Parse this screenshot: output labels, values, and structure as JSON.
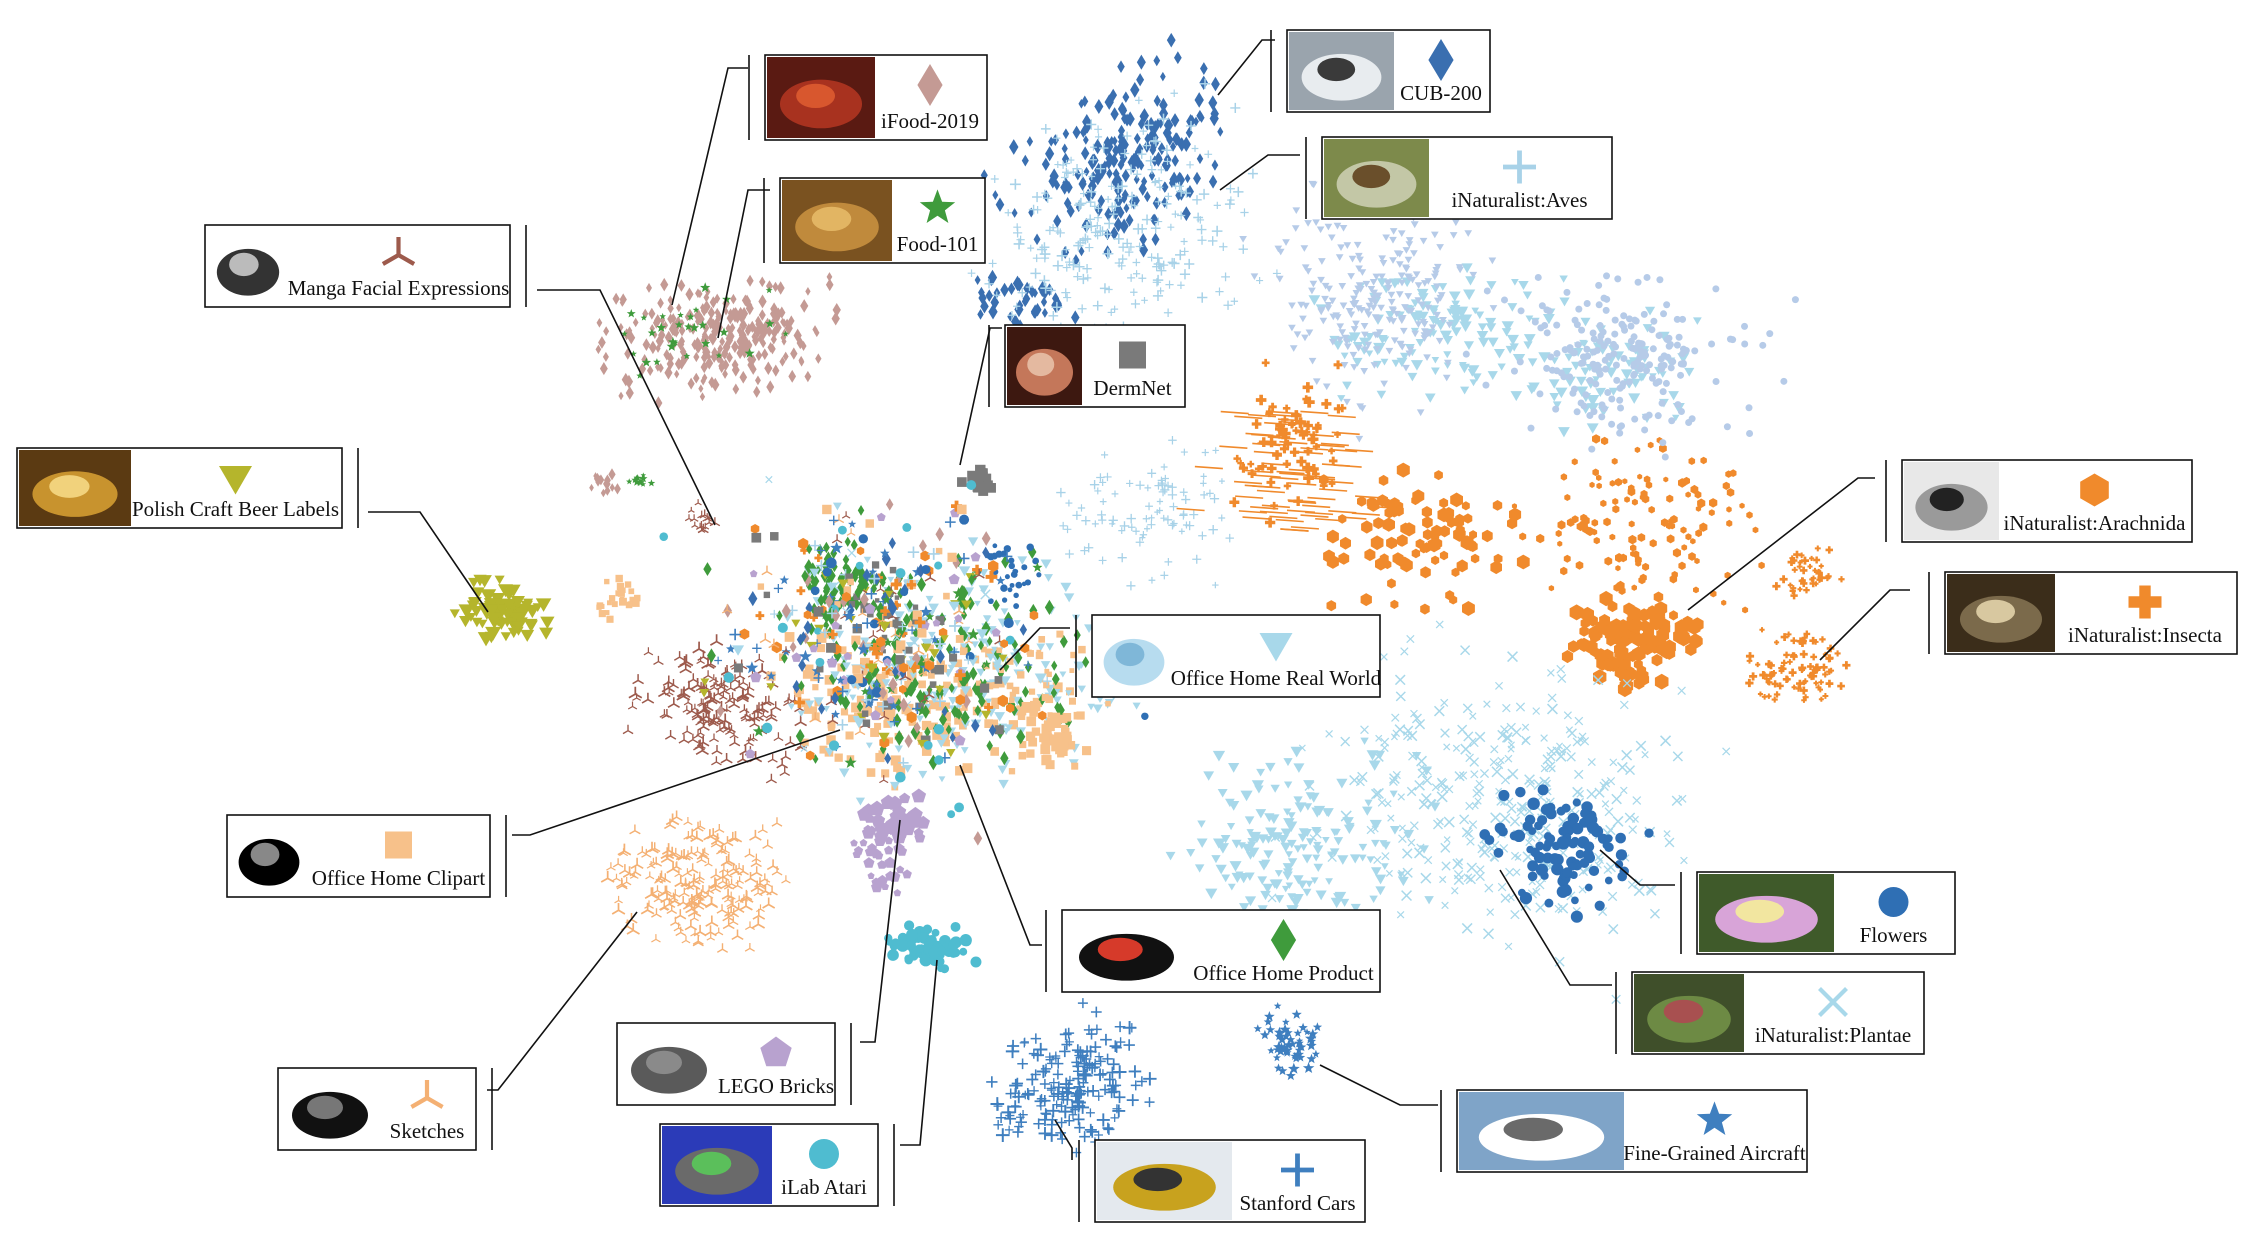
{
  "chart_data": {
    "type": "scatter",
    "title": "",
    "xlabel": "",
    "ylabel": "",
    "grid": false,
    "legend_placement": "callouts around plot",
    "series": [
      {
        "name": "iFood-2019",
        "marker": "diamond",
        "color": "#c49a94"
      },
      {
        "name": "Food-101",
        "marker": "star",
        "color": "#3f9b3c"
      },
      {
        "name": "Manga Facial Expressions",
        "marker": "tri",
        "color": "#9d5a4c"
      },
      {
        "name": "Polish Craft Beer Labels",
        "marker": "triangle-down",
        "color": "#b5b52c"
      },
      {
        "name": "CUB-200",
        "marker": "diamond",
        "color": "#3a6fb0"
      },
      {
        "name": "iNaturalist:Aves",
        "marker": "plus",
        "color": "#a8d2e8"
      },
      {
        "name": "DermNet",
        "marker": "square",
        "color": "#7a7a7a"
      },
      {
        "name": "iNaturalist:Arachnida",
        "marker": "hexagon",
        "color": "#f08a2c"
      },
      {
        "name": "iNaturalist:Insecta",
        "marker": "plus-filled",
        "color": "#f08a2c"
      },
      {
        "name": "Office Home Real World",
        "marker": "triangle-down",
        "color": "#a8d8ea"
      },
      {
        "name": "Office Home Clipart",
        "marker": "square",
        "color": "#f7c18a"
      },
      {
        "name": "Office Home Product",
        "marker": "diamond",
        "color": "#3f9b3c"
      },
      {
        "name": "Flowers",
        "marker": "circle",
        "color": "#2f6fb4"
      },
      {
        "name": "iNaturalist:Plantae",
        "marker": "x",
        "color": "#a8d8ea"
      },
      {
        "name": "Sketches",
        "marker": "tri",
        "color": "#f4b073"
      },
      {
        "name": "LEGO Bricks",
        "marker": "pentagon",
        "color": "#b8a2cf"
      },
      {
        "name": "iLab Atari",
        "marker": "circle",
        "color": "#4fbcd0"
      },
      {
        "name": "Stanford Cars",
        "marker": "plus",
        "color": "#3f7fbf"
      },
      {
        "name": "Fine-Grained Aircraft",
        "marker": "star",
        "color": "#3f7fbf"
      }
    ]
  }
}
